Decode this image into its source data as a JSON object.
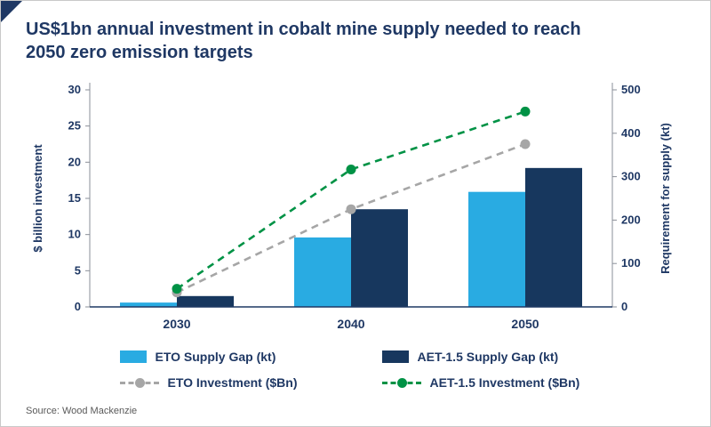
{
  "header": {
    "title_lines": [
      "US$1bn annual investment in cobalt mine supply needed to reach",
      "2050 zero emission targets"
    ]
  },
  "footer": {
    "source": "Source: Wood Mackenzie"
  },
  "colors": {
    "title": "#1F3864",
    "accent_triangle": "#1F3864",
    "axis_text": "#1F3864",
    "axis_line": "#8a8f98",
    "baseline": "#1F3864",
    "source_text": "#595959",
    "border": "#c9c9c9"
  },
  "chart_data": {
    "type": "bar+line combo",
    "title": "US$1bn annual investment in cobalt mine supply needed to reach 2050 zero emission targets",
    "categories": [
      "2030",
      "2040",
      "2050"
    ],
    "bar_series": [
      {
        "name": "ETO Supply Gap (kt)",
        "axis": "right",
        "color": "#29ABE2",
        "values": [
          10,
          160,
          265
        ]
      },
      {
        "name": "AET-1.5 Supply Gap (kt)",
        "axis": "right",
        "color": "#17375E",
        "values": [
          25,
          225,
          320
        ]
      }
    ],
    "line_series": [
      {
        "name": "ETO Investment ($Bn)",
        "axis": "left",
        "color": "#A6A6A6",
        "values": [
          2,
          13.5,
          22.5
        ]
      },
      {
        "name": "AET-1.5 Investment ($Bn)",
        "axis": "left",
        "color": "#009245",
        "values": [
          2.5,
          19,
          27
        ]
      }
    ],
    "left_axis": {
      "label": "$ billion investment",
      "min": 0,
      "max": 30,
      "step": 5
    },
    "right_axis": {
      "label": "Requirement for supply (kt)",
      "min": 0,
      "max": 500,
      "step": 100
    },
    "legend_position": "bottom",
    "grid": false,
    "line_style": "dashed with circle markers"
  }
}
